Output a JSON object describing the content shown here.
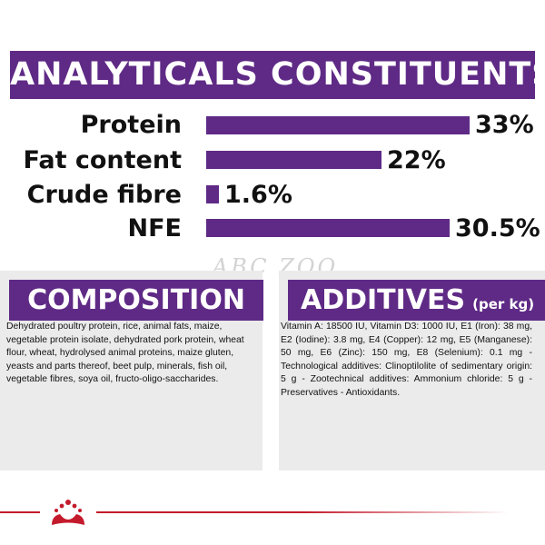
{
  "analyticals": {
    "title": "ANALYTICALS CONSTITUENTS",
    "rows": [
      {
        "label": "Protein",
        "value": "33%",
        "percent": 33
      },
      {
        "label": "Fat content",
        "value": "22%",
        "percent": 22
      },
      {
        "label": "Crude fibre",
        "value": "1.6%",
        "percent": 1.6
      },
      {
        "label": "NFE",
        "value": "30.5%",
        "percent": 30.5
      }
    ]
  },
  "watermark": "ABC ZOO",
  "composition": {
    "title": "COMPOSITION",
    "text": "Dehydrated poultry protein, rice, animal fats, maize, vegetable protein isolate, dehydrated pork protein, wheat flour, wheat, hydrolysed animal proteins, maize gluten, yeasts and parts thereof, beet pulp, minerals, fish oil, vegetable fibres, soya oil, fructo-oligo-saccharides."
  },
  "additives": {
    "title": "ADDITIVES",
    "subtitle": "(per kg)",
    "text": "Vitamin A: 18500 IU, Vitamin D3: 1000 IU, E1 (Iron): 38 mg, E2 (Iodine): 3.8 mg, E4 (Copper): 12 mg, E5 (Manganese): 50 mg, E6 (Zinc): 150 mg, E8 (Selenium): 0.1 mg -Technological additives: Clinoptilolite of sedimentary origin: 5 g - Zootechnical additives: Ammonium chloride: 5 g - Preservatives - Antioxidants."
  },
  "colors": {
    "brand_purple": "#5f2a86",
    "brand_red": "#c41b2c",
    "panel_bg": "#ebebeb"
  },
  "logo_icon": "royal-canin-crown-logo-icon"
}
